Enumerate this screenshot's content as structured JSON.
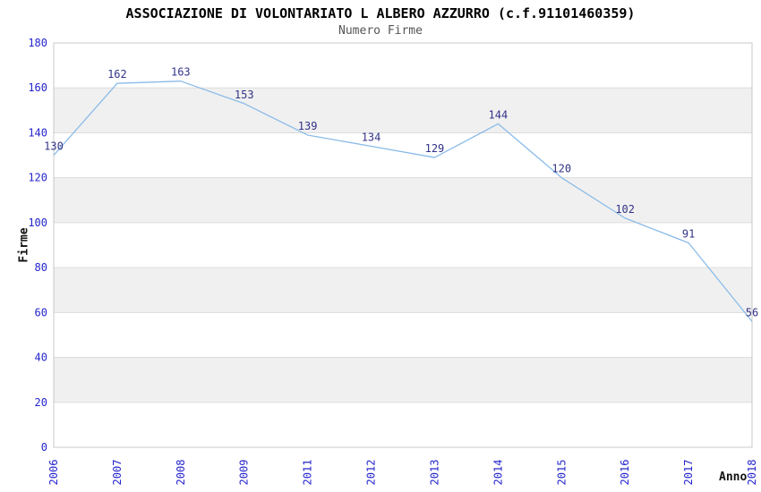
{
  "chart_data": {
    "type": "line",
    "title": "ASSOCIAZIONE DI VOLONTARIATO L ALBERO AZZURRO (c.f.91101460359)",
    "subtitle": "Numero Firme",
    "xlabel": "Anno",
    "ylabel": "Firme",
    "categories": [
      "2006",
      "2007",
      "2008",
      "2009",
      "2011",
      "2012",
      "2013",
      "2014",
      "2015",
      "2016",
      "2017",
      "2018"
    ],
    "values": [
      130,
      162,
      163,
      153,
      139,
      134,
      129,
      144,
      120,
      102,
      91,
      56
    ],
    "series_name": "Numero Firme",
    "ylim": [
      0,
      180
    ],
    "ytick_step": 20,
    "ytick_labels": [
      "0",
      "20",
      "40",
      "60",
      "80",
      "100",
      "120",
      "140",
      "160",
      "180"
    ],
    "grid": true,
    "legend_position": "none",
    "data_labels_visible": true,
    "colors": {
      "line": "#8abbe8",
      "tick_label": "#2424cc",
      "data_label": "#333388",
      "band": "#f0f0f0",
      "grid_line": "#dcdcdc",
      "plot_border": "#c8c8c8",
      "title": "#000000",
      "subtitle": "#555555",
      "axis_title": "#111111",
      "background": "#ffffff"
    }
  }
}
